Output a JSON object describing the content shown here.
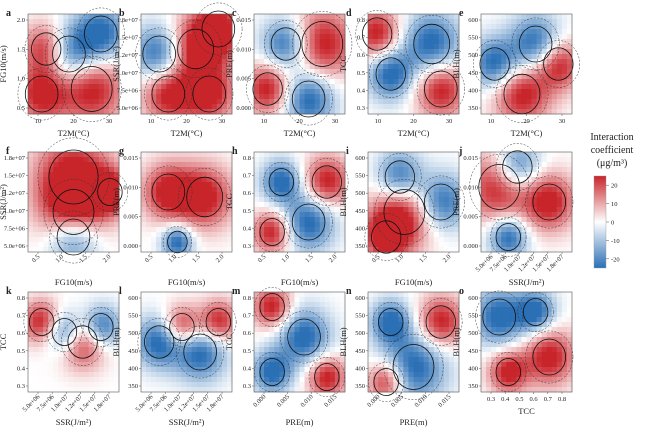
{
  "chart_data": {
    "type": "heatmap",
    "legend": {
      "title_lines": [
        "Interaction",
        "coefficient",
        "(μg/m³)"
      ],
      "ticks": [
        20,
        10,
        0,
        -10,
        -20
      ],
      "range": [
        -25,
        25
      ],
      "colors": [
        "#2b6fb5",
        "#ffffff",
        "#c8252b"
      ],
      "placement": "right"
    },
    "panels": [
      {
        "id": "a",
        "xlabel": "T2M(°C)",
        "ylabel": "FG10(m/s)",
        "xticks": [
          "10",
          "20",
          "30"
        ],
        "yticks": [
          "2.0",
          "1.5",
          "1.0",
          "0.5"
        ],
        "x_rotate": false
      },
      {
        "id": "b",
        "xlabel": "T2M(°C)",
        "ylabel": "SSR(J/m²)",
        "xticks": [
          "10",
          "20",
          "30"
        ],
        "yticks": [
          "1.8e+07",
          "1.5e+07",
          "1.2e+07",
          "1.0e+07",
          "7.5e+06",
          "5.0e+06"
        ],
        "x_rotate": false
      },
      {
        "id": "c",
        "xlabel": "T2M(°C)",
        "ylabel": "PRE(m)",
        "xticks": [
          "10",
          "20",
          "30"
        ],
        "yticks": [
          "0.015",
          "0.010",
          "0.005",
          "0.000"
        ],
        "x_rotate": false
      },
      {
        "id": "d",
        "xlabel": "T2M(°C)",
        "ylabel": "TCC",
        "xticks": [
          "10",
          "20",
          "30"
        ],
        "yticks": [
          "0.8",
          "0.7",
          "0.6",
          "0.5",
          "0.4",
          "0.3"
        ],
        "x_rotate": false
      },
      {
        "id": "e",
        "xlabel": "T2M(°C)",
        "ylabel": "BLH(m)",
        "xticks": [
          "10",
          "20",
          "30"
        ],
        "yticks": [
          "600",
          "550",
          "500",
          "450",
          "400",
          "350"
        ],
        "x_rotate": false
      },
      {
        "id": "f",
        "xlabel": "FG10(m/s)",
        "ylabel": "SSR(J/m²)",
        "xticks": [
          "0.5",
          "1.0",
          "1.5",
          "2.0"
        ],
        "yticks": [
          "1.8e+07",
          "1.5e+07",
          "1.2e+07",
          "1.0e+07",
          "7.5e+06",
          "5.0e+06"
        ],
        "x_rotate": true
      },
      {
        "id": "g",
        "xlabel": "FG10(m/s)",
        "ylabel": "PRE(m)",
        "xticks": [
          "0.5",
          "1.0",
          "1.5",
          "2.0"
        ],
        "yticks": [
          "0.015",
          "0.010",
          "0.005",
          "0.000"
        ],
        "x_rotate": true
      },
      {
        "id": "h",
        "xlabel": "FG10(m/s)",
        "ylabel": "TCC",
        "xticks": [
          "0.5",
          "1.0",
          "1.5",
          "2.0"
        ],
        "yticks": [
          "0.8",
          "0.7",
          "0.6",
          "0.5",
          "0.4",
          "0.3"
        ],
        "x_rotate": true
      },
      {
        "id": "i",
        "xlabel": "FG10(m/s)",
        "ylabel": "BLH(m)",
        "xticks": [
          "0.5",
          "1.0",
          "1.5",
          "2.0"
        ],
        "yticks": [
          "600",
          "550",
          "500",
          "450",
          "400",
          "350"
        ],
        "x_rotate": true
      },
      {
        "id": "j",
        "xlabel": "SSR(J/m²)",
        "ylabel": "PRE(m)",
        "xticks": [
          "5.0e+06",
          "7.5e+06",
          "1.0e+07",
          "1.2e+07",
          "1.5e+07",
          "1.8e+07"
        ],
        "yticks": [
          "0.015",
          "0.010",
          "0.005",
          "0.000"
        ],
        "x_rotate": true
      },
      {
        "id": "k",
        "xlabel": "SSR(J/m²)",
        "ylabel": "TCC",
        "xticks": [
          "5.0e+06",
          "7.5e+06",
          "1.0e+07",
          "1.2e+07",
          "1.5e+07",
          "1.8e+07"
        ],
        "yticks": [
          "0.8",
          "0.7",
          "0.6",
          "0.5",
          "0.4",
          "0.3"
        ],
        "x_rotate": true
      },
      {
        "id": "l",
        "xlabel": "SSR(J/m²)",
        "ylabel": "BLH(m)",
        "xticks": [
          "5.0e+06",
          "7.5e+06",
          "1.0e+07",
          "1.2e+07",
          "1.5e+07",
          "1.8e+07"
        ],
        "yticks": [
          "600",
          "550",
          "500",
          "450",
          "400",
          "350"
        ],
        "x_rotate": true
      },
      {
        "id": "m",
        "xlabel": "PRE(m)",
        "ylabel": "TCC",
        "xticks": [
          "0.000",
          "0.005",
          "0.010",
          "0.015"
        ],
        "yticks": [
          "0.8",
          "0.7",
          "0.6",
          "0.5",
          "0.4",
          "0.3"
        ],
        "x_rotate": true
      },
      {
        "id": "n",
        "xlabel": "PRE(m)",
        "ylabel": "BLH(m)",
        "xticks": [
          "0.000",
          "0.005",
          "0.010",
          "0.015"
        ],
        "yticks": [
          "600",
          "550",
          "500",
          "450",
          "400",
          "350"
        ],
        "x_rotate": true
      },
      {
        "id": "o",
        "xlabel": "TCC",
        "ylabel": "BLH(m)",
        "xticks": [
          "0.3",
          "0.4",
          "0.5",
          "0.6",
          "0.7",
          "0.8"
        ],
        "yticks": [
          "600",
          "550",
          "500",
          "450",
          "400",
          "350"
        ],
        "x_rotate": false
      }
    ]
  }
}
